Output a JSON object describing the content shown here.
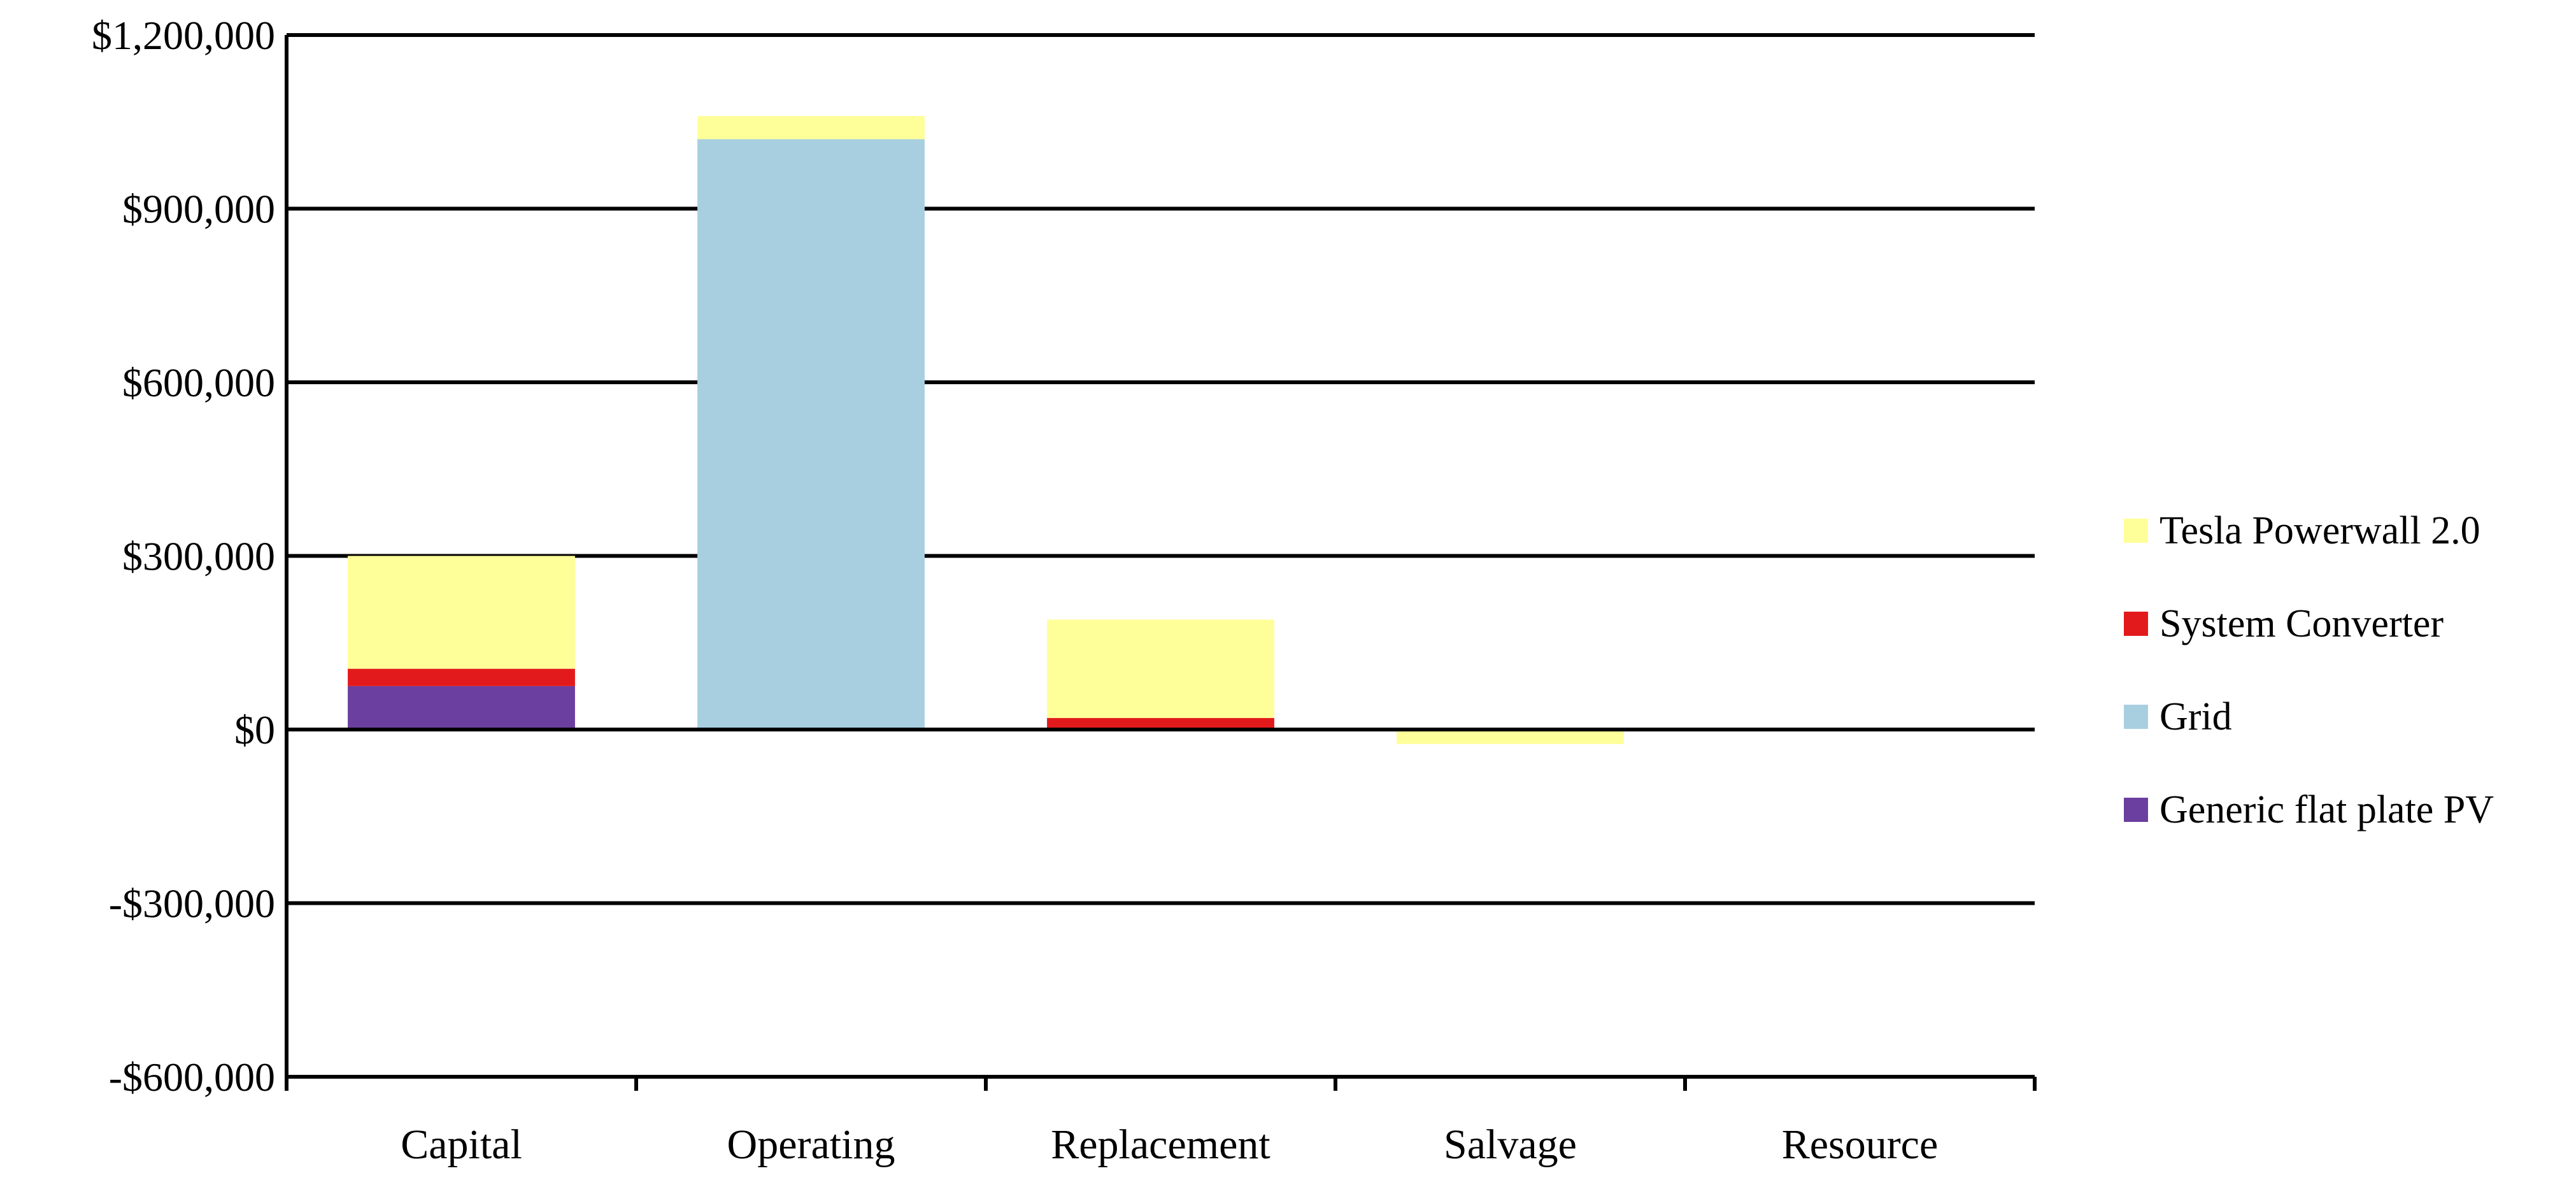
{
  "chart_data": {
    "type": "bar",
    "stacked": true,
    "categories": [
      "Capital",
      "Operating",
      "Replacement",
      "Salvage",
      "Resource"
    ],
    "ylim": [
      -600000,
      1200000
    ],
    "yticks": [
      -600000,
      -300000,
      0,
      300000,
      600000,
      900000,
      1200000
    ],
    "ytick_labels": [
      "-$600,000",
      "-$300,000",
      "$0",
      "$300,000",
      "$600,000",
      "$900,000",
      "$1,200,000"
    ],
    "grid": true,
    "legend_position": "right",
    "series": [
      {
        "name": "Generic flat plate PV",
        "color": "#6B3FA0",
        "values": [
          75000,
          0,
          0,
          0,
          0
        ]
      },
      {
        "name": "Grid",
        "color": "#A8CFE0",
        "values": [
          0,
          1020000,
          0,
          0,
          0
        ]
      },
      {
        "name": "System Converter",
        "color": "#E31A1C",
        "values": [
          30000,
          0,
          20000,
          0,
          0
        ]
      },
      {
        "name": "Tesla Powerwall 2.0",
        "color": "#FFFF99",
        "values": [
          195000,
          40000,
          170000,
          -25000,
          0
        ]
      }
    ],
    "legend_order": [
      "Tesla Powerwall 2.0",
      "System Converter",
      "Grid",
      "Generic flat plate PV"
    ]
  }
}
